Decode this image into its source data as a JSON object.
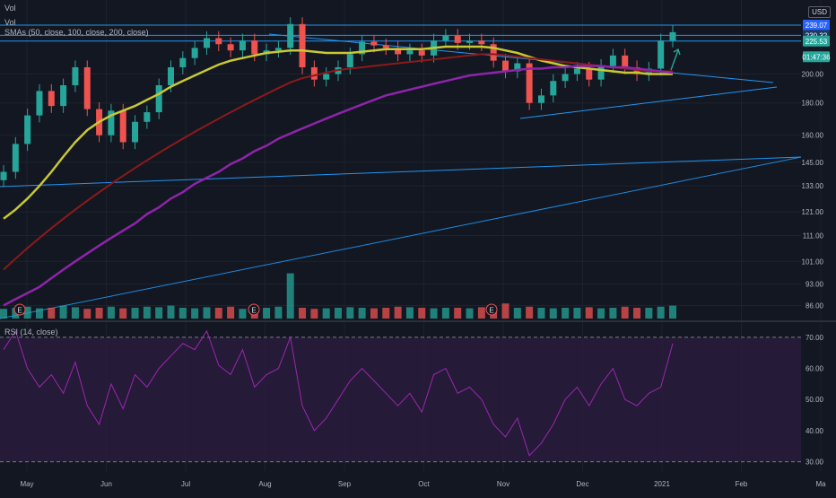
{
  "legend": {
    "vol1": "Vol",
    "vol2": "Vol",
    "smas": "SMAs (50, close, 100, close, 200, close)",
    "rsi": "RSI (14, close)"
  },
  "currency": "USD",
  "price_labels": [
    {
      "text": "239.07",
      "value": 239.07,
      "color": "#2962ff"
    },
    {
      "text": "230.32",
      "value": 230.32,
      "color": "#1e3a5f"
    },
    {
      "text": "225.53",
      "value": 225.53,
      "color": "#26a69a"
    },
    {
      "text": "01:47:36",
      "value": 213,
      "color": "#26a69a"
    }
  ],
  "colors": {
    "background": "#131722",
    "up": "#26a69a",
    "down": "#ef5350",
    "sma50": "#c8c832",
    "sma100": "#8b1a1a",
    "sma200": "#8e24aa",
    "trendline": "#2196f3",
    "rsi_line": "#9c27b0",
    "rsi_band": "#2a1b3d"
  },
  "chart_data": [
    {
      "type": "candlestick",
      "title": "",
      "x_axis_labels": [
        "May",
        "Jun",
        "Jul",
        "Aug",
        "Sep",
        "Oct",
        "Nov",
        "Dec",
        "2021",
        "Feb",
        "Ma"
      ],
      "y_axis_ticks": [
        86.0,
        93.0,
        101.0,
        111.0,
        121.0,
        133.0,
        145.0,
        160.0,
        180.0,
        200.0,
        239.07
      ],
      "y_scale": "log",
      "ylim": [
        82,
        262
      ],
      "weekly_close": [
        140,
        155,
        172,
        188,
        178,
        192,
        205,
        176,
        160,
        175,
        156,
        168,
        174,
        192,
        205,
        212,
        220,
        228,
        223,
        218,
        226,
        215,
        218,
        220,
        240,
        205,
        196,
        200,
        205,
        215,
        225,
        222,
        220,
        215,
        218,
        214,
        226,
        230,
        224,
        226,
        223,
        210,
        202,
        208,
        180,
        185,
        195,
        200,
        204,
        196,
        206,
        214,
        205,
        200,
        204,
        226,
        233
      ],
      "series": [
        {
          "name": "SMA 50",
          "values": [
            118,
            122,
            127,
            133,
            140,
            148,
            156,
            163,
            168,
            172,
            175,
            178,
            182,
            186,
            191,
            195,
            199,
            203,
            207,
            210,
            212,
            214,
            216,
            217,
            218,
            218,
            217,
            216,
            216,
            216,
            217,
            218,
            219,
            219,
            219,
            219,
            220,
            221,
            221,
            221,
            221,
            220,
            218,
            216,
            213,
            210,
            208,
            206,
            205,
            204,
            203,
            202,
            201,
            201,
            200,
            200,
            200
          ]
        },
        {
          "name": "SMA 100",
          "values": [
            98,
            102,
            106,
            110,
            114,
            118,
            122,
            126,
            130,
            134,
            138,
            142,
            146,
            150,
            154,
            158,
            162,
            166,
            170,
            174,
            178,
            182,
            186,
            190,
            194,
            197,
            199,
            201,
            203,
            204,
            205,
            206,
            207,
            208,
            209,
            210,
            211,
            212,
            213,
            214,
            215,
            215,
            214,
            213,
            212,
            211,
            210,
            209,
            208,
            207,
            206,
            205,
            204,
            203,
            202,
            202,
            202
          ]
        },
        {
          "name": "SMA 200",
          "values": [
            86,
            88,
            90,
            92,
            95,
            98,
            101,
            104,
            107,
            110,
            113,
            116,
            120,
            123,
            127,
            130,
            134,
            137,
            140,
            144,
            147,
            151,
            154,
            158,
            161,
            164,
            167,
            170,
            173,
            176,
            179,
            182,
            185,
            187,
            189,
            191,
            193,
            195,
            197,
            199,
            200,
            201,
            202,
            203,
            204,
            204,
            205,
            205,
            206,
            206,
            206,
            205,
            205,
            204,
            203,
            202,
            201
          ]
        }
      ],
      "horizontal_levels": [
        239.07,
        230.32,
        225.53
      ],
      "volume_weekly": [
        0.18,
        0.2,
        0.22,
        0.19,
        0.2,
        0.24,
        0.21,
        0.18,
        0.2,
        0.22,
        0.19,
        0.2,
        0.22,
        0.21,
        0.24,
        0.2,
        0.19,
        0.21,
        0.2,
        0.22,
        0.18,
        0.21,
        0.2,
        0.22,
        0.42,
        0.2,
        0.18,
        0.19,
        0.2,
        0.21,
        0.2,
        0.19,
        0.2,
        0.22,
        0.21,
        0.2,
        0.19,
        0.2,
        0.2,
        0.19,
        0.21,
        0.2,
        0.28,
        0.2,
        0.22,
        0.2,
        0.19,
        0.2,
        0.2,
        0.21,
        0.19,
        0.2,
        0.22,
        0.2,
        0.2,
        0.22,
        0.24
      ],
      "earnings_markers": [
        "E",
        "E",
        "E"
      ]
    },
    {
      "type": "line",
      "title": "RSI (14, close)",
      "y_axis_ticks": [
        30.0,
        40.0,
        50.0,
        60.0,
        70.0
      ],
      "ylim": [
        27,
        74
      ],
      "bands": [
        30,
        70
      ],
      "values": [
        66,
        72,
        60,
        54,
        58,
        52,
        62,
        48,
        42,
        55,
        47,
        58,
        54,
        60,
        64,
        68,
        66,
        72,
        61,
        58,
        66,
        54,
        58,
        60,
        70,
        48,
        40,
        44,
        50,
        56,
        60,
        56,
        52,
        48,
        52,
        46,
        58,
        60,
        52,
        54,
        50,
        42,
        38,
        44,
        32,
        36,
        42,
        50,
        54,
        48,
        55,
        60,
        50,
        48,
        52,
        54,
        68
      ]
    }
  ]
}
